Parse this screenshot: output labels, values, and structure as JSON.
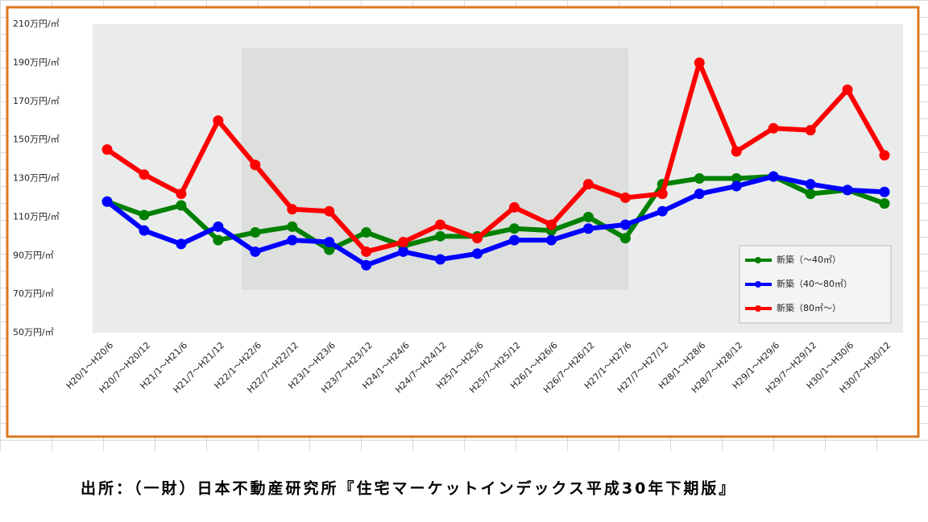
{
  "chart_data": {
    "type": "line",
    "categories": [
      "H20/1～H20/6",
      "H20/7～H20/12",
      "H21/1～H21/6",
      "H21/7～H21/12",
      "H22/1～H22/6",
      "H22/7～H22/12",
      "H23/1～H23/6",
      "H23/7～H23/12",
      "H24/1～H24/6",
      "H24/7～H24/12",
      "H25/1～H25/6",
      "H25/7～H25/12",
      "H26/1～H26/6",
      "H26/7～H26/12",
      "H27/1～H27/6",
      "H27/7～H27/12",
      "H28/1～H28/6",
      "H28/7～H28/12",
      "H29/1～H29/6",
      "H29/7～H29/12",
      "H30/1～H30/6",
      "H30/7～H30/12"
    ],
    "series": [
      {
        "name": "新築（～40㎡）",
        "color": "#008000",
        "values": [
          118,
          111,
          116,
          98,
          102,
          105,
          93,
          102,
          95,
          100,
          100,
          104,
          103,
          110,
          99,
          127,
          130,
          130,
          131,
          122,
          124,
          117
        ]
      },
      {
        "name": "新築（40～80㎡）",
        "color": "#0000ff",
        "values": [
          118,
          103,
          96,
          105,
          92,
          98,
          97,
          85,
          92,
          88,
          91,
          98,
          98,
          104,
          106,
          113,
          122,
          126,
          131,
          127,
          124,
          123
        ]
      },
      {
        "name": "新築（80㎡～）",
        "color": "#ff0000",
        "values": [
          145,
          132,
          122,
          160,
          137,
          114,
          113,
          92,
          97,
          106,
          99,
          115,
          106,
          127,
          120,
          122,
          190,
          144,
          156,
          155,
          176,
          142
        ]
      }
    ],
    "ylim": [
      50,
      210
    ],
    "yticks": [
      {
        "value": 50,
        "label": "50万円/㎡"
      },
      {
        "value": 70,
        "label": "70万円/㎡"
      },
      {
        "value": 90,
        "label": "90万円/㎡"
      },
      {
        "value": 110,
        "label": "110万円/㎡"
      },
      {
        "value": 130,
        "label": "130万円/㎡"
      },
      {
        "value": 150,
        "label": "150万円/㎡"
      },
      {
        "value": 170,
        "label": "170万円/㎡"
      },
      {
        "value": 190,
        "label": "190万円/㎡"
      },
      {
        "value": 210,
        "label": "210万円/㎡"
      }
    ],
    "grid": false,
    "legend": "lower right",
    "source": "出所：（一財）日本不動産研究所『住宅マーケットインデックス平成30年下期版』"
  }
}
